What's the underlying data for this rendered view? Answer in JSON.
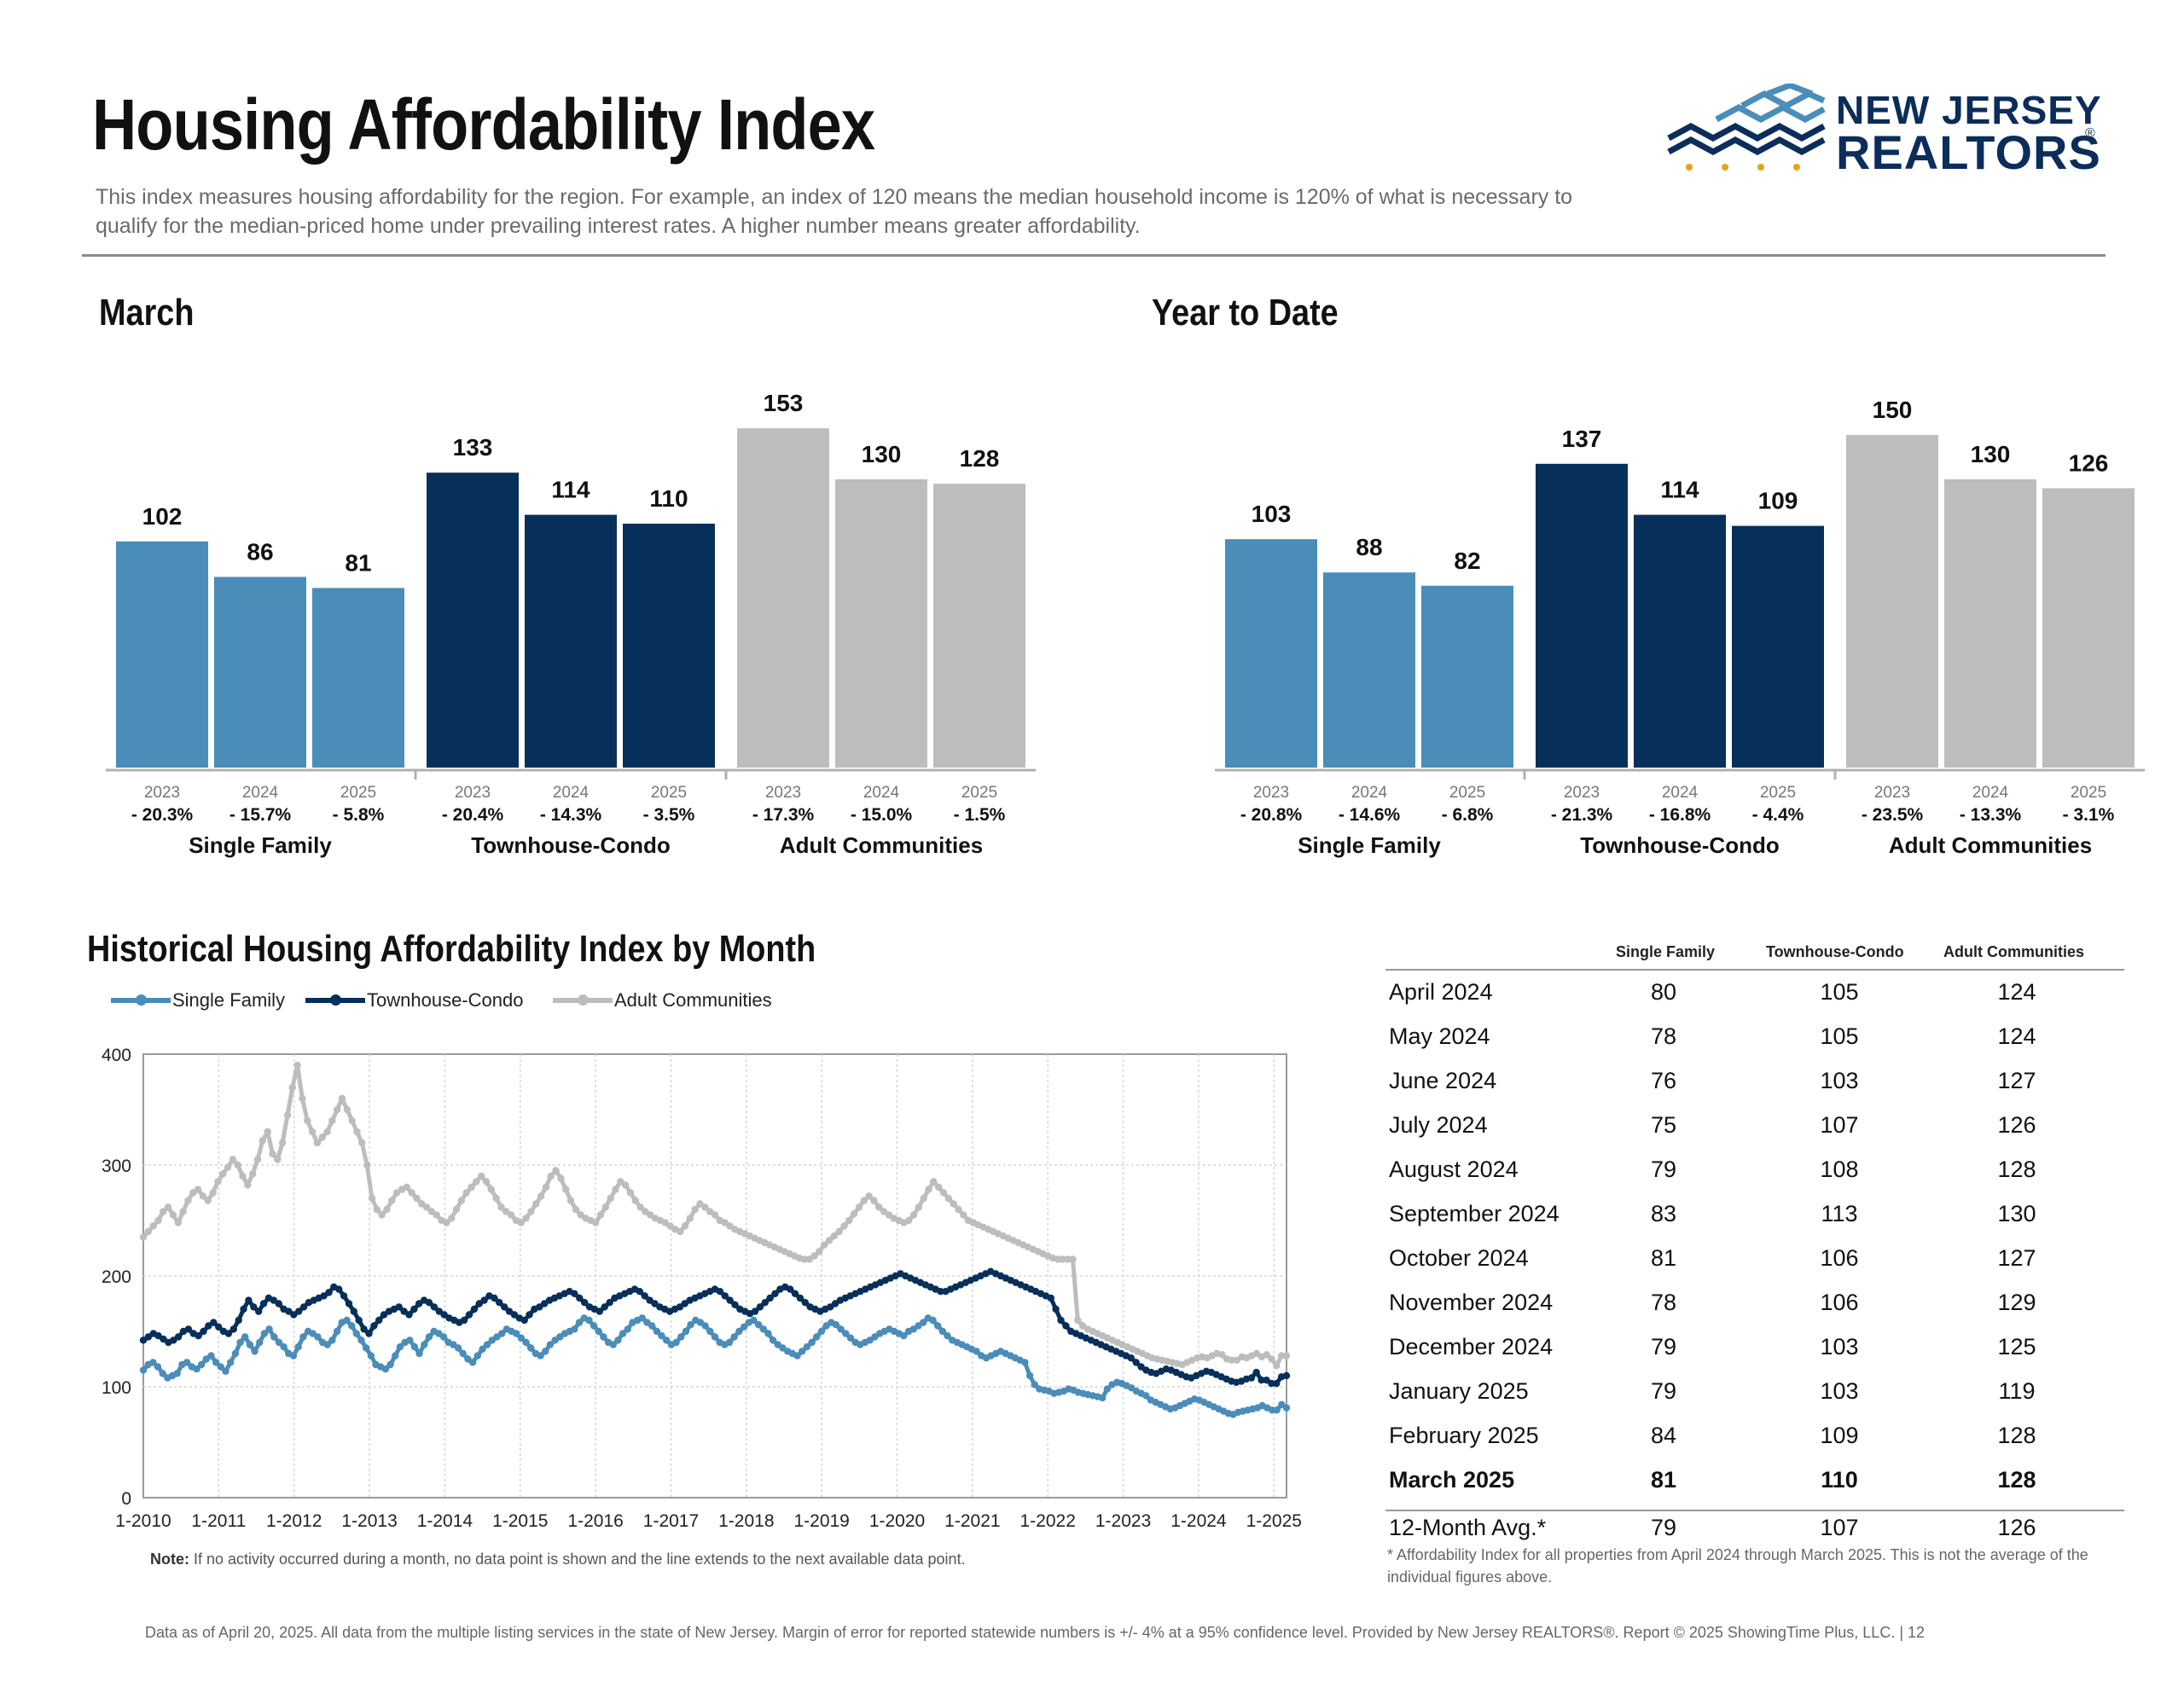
{
  "title": "Housing Affordability Index",
  "description": "This index measures housing affordability for the region. For example, an index of 120 means the median household income is 120% of what is necessary to qualify for the median-priced home under prevailing interest rates. A higher number means greater affordability.",
  "logo": {
    "line1": "NEW JERSEY",
    "line2": "REALTORS",
    "reg": "®"
  },
  "colors": {
    "single_family": "#4a8db9",
    "townhouse": "#062f5a",
    "adult": "#bdbdbd",
    "historical_single": "#4a8db9"
  },
  "sections": {
    "march": "March",
    "ytd": "Year to Date",
    "historical": "Historical Housing Affordability Index by Month"
  },
  "chart_data": [
    {
      "type": "bar",
      "title": "March",
      "groups": [
        "Single Family",
        "Townhouse-Condo",
        "Adult Communities"
      ],
      "categories": [
        "2023",
        "2024",
        "2025"
      ],
      "series": [
        {
          "name": "Single Family",
          "values": [
            102,
            86,
            81
          ],
          "changes": [
            "- 20.3%",
            "- 15.7%",
            "- 5.8%"
          ]
        },
        {
          "name": "Townhouse-Condo",
          "values": [
            133,
            114,
            110
          ],
          "changes": [
            "- 20.4%",
            "- 14.3%",
            "- 3.5%"
          ]
        },
        {
          "name": "Adult Communities",
          "values": [
            153,
            130,
            128
          ],
          "changes": [
            "- 17.3%",
            "- 15.0%",
            "- 1.5%"
          ]
        }
      ]
    },
    {
      "type": "bar",
      "title": "Year to Date",
      "groups": [
        "Single Family",
        "Townhouse-Condo",
        "Adult Communities"
      ],
      "categories": [
        "2023",
        "2024",
        "2025"
      ],
      "series": [
        {
          "name": "Single Family",
          "values": [
            103,
            88,
            82
          ],
          "changes": [
            "- 20.8%",
            "- 14.6%",
            "- 6.8%"
          ]
        },
        {
          "name": "Townhouse-Condo",
          "values": [
            137,
            114,
            109
          ],
          "changes": [
            "- 21.3%",
            "- 16.8%",
            "- 4.4%"
          ]
        },
        {
          "name": "Adult Communities",
          "values": [
            150,
            130,
            126
          ],
          "changes": [
            "- 23.5%",
            "- 13.3%",
            "- 3.1%"
          ]
        }
      ]
    },
    {
      "type": "line",
      "title": "Historical Housing Affordability Index by Month",
      "ylim": [
        0,
        400
      ],
      "yticks": [
        0,
        100,
        200,
        300,
        400
      ],
      "xticks": [
        "1-2010",
        "1-2011",
        "1-2012",
        "1-2013",
        "1-2014",
        "1-2015",
        "1-2016",
        "1-2017",
        "1-2018",
        "1-2019",
        "1-2020",
        "1-2021",
        "1-2022",
        "1-2023",
        "1-2024",
        "1-2025"
      ],
      "x_start": "1-2010",
      "x_end": "3-2025",
      "grid": true,
      "legend": "top-left",
      "series": [
        {
          "name": "Single Family",
          "values": [
            115,
            120,
            122,
            118,
            112,
            108,
            110,
            112,
            120,
            122,
            118,
            116,
            120,
            125,
            128,
            122,
            118,
            114,
            122,
            130,
            140,
            145,
            138,
            132,
            140,
            148,
            152,
            145,
            140,
            136,
            130,
            128,
            136,
            145,
            150,
            148,
            145,
            140,
            138,
            142,
            150,
            158,
            160,
            155,
            148,
            142,
            135,
            128,
            120,
            118,
            116,
            120,
            128,
            136,
            140,
            142,
            136,
            130,
            138,
            145,
            150,
            148,
            145,
            140,
            138,
            135,
            130,
            125,
            122,
            128,
            134,
            138,
            142,
            145,
            148,
            152,
            150,
            148,
            144,
            140,
            135,
            130,
            128,
            132,
            138,
            142,
            145,
            148,
            150,
            152,
            158,
            162,
            160,
            155,
            150,
            145,
            140,
            138,
            142,
            148,
            152,
            158,
            160,
            162,
            158,
            155,
            150,
            146,
            142,
            138,
            140,
            145,
            150,
            156,
            160,
            158,
            155,
            150,
            145,
            140,
            138,
            140,
            145,
            150,
            154,
            158,
            160,
            156,
            152,
            148,
            142,
            138,
            135,
            132,
            130,
            128,
            132,
            136,
            140,
            145,
            150,
            155,
            158,
            156,
            152,
            148,
            144,
            140,
            138,
            140,
            142,
            145,
            148,
            150,
            152,
            150,
            148,
            146,
            150,
            152,
            155,
            158,
            162,
            160,
            155,
            150,
            146,
            142,
            140,
            138,
            136,
            134,
            132,
            128,
            126,
            128,
            130,
            132,
            130,
            128,
            126,
            124,
            122,
            110,
            102,
            98,
            97,
            96,
            94,
            95,
            96,
            98,
            97,
            95,
            94,
            93,
            92,
            91,
            90,
            98,
            102,
            104,
            103,
            101,
            99,
            96,
            94,
            92,
            88,
            86,
            84,
            82,
            80,
            81,
            83,
            85,
            87,
            89,
            88,
            86,
            84,
            82,
            80,
            78,
            76,
            75,
            77,
            78,
            79,
            80,
            81,
            83,
            81,
            79,
            79,
            84,
            81
          ]
        },
        {
          "name": "Townhouse-Condo",
          "values": [
            142,
            145,
            148,
            146,
            143,
            140,
            142,
            145,
            150,
            152,
            148,
            146,
            150,
            155,
            158,
            154,
            150,
            148,
            152,
            160,
            170,
            178,
            172,
            168,
            175,
            180,
            178,
            175,
            170,
            168,
            165,
            168,
            172,
            176,
            178,
            180,
            182,
            185,
            190,
            188,
            182,
            175,
            168,
            160,
            152,
            148,
            155,
            160,
            165,
            168,
            170,
            172,
            168,
            165,
            170,
            175,
            178,
            176,
            172,
            168,
            165,
            162,
            160,
            158,
            160,
            165,
            170,
            175,
            178,
            182,
            180,
            176,
            172,
            168,
            165,
            162,
            160,
            165,
            170,
            172,
            175,
            178,
            180,
            182,
            184,
            186,
            184,
            180,
            176,
            172,
            170,
            168,
            172,
            176,
            180,
            182,
            184,
            186,
            188,
            186,
            182,
            178,
            175,
            172,
            170,
            168,
            170,
            172,
            175,
            178,
            180,
            182,
            184,
            186,
            188,
            186,
            182,
            178,
            174,
            170,
            168,
            166,
            168,
            172,
            176,
            180,
            184,
            188,
            190,
            188,
            184,
            180,
            176,
            172,
            170,
            168,
            170,
            172,
            175,
            178,
            180,
            182,
            184,
            186,
            188,
            190,
            192,
            194,
            196,
            198,
            200,
            202,
            200,
            198,
            196,
            194,
            192,
            190,
            188,
            186,
            186,
            188,
            190,
            192,
            194,
            196,
            198,
            200,
            202,
            204,
            202,
            200,
            198,
            196,
            194,
            192,
            190,
            188,
            186,
            184,
            182,
            180,
            170,
            160,
            155,
            150,
            148,
            146,
            144,
            142,
            140,
            138,
            136,
            134,
            132,
            130,
            128,
            126,
            122,
            118,
            115,
            113,
            112,
            114,
            116,
            115,
            113,
            111,
            109,
            108,
            110,
            112,
            114,
            113,
            111,
            109,
            107,
            105,
            104,
            105,
            107,
            108,
            113,
            106,
            106,
            103,
            103,
            109,
            110
          ]
        },
        {
          "name": "Adult Communities",
          "values": [
            235,
            240,
            245,
            250,
            258,
            262,
            255,
            248,
            258,
            268,
            275,
            278,
            272,
            268,
            275,
            285,
            292,
            298,
            305,
            300,
            290,
            282,
            292,
            305,
            322,
            330,
            310,
            305,
            320,
            345,
            370,
            390,
            360,
            340,
            330,
            320,
            325,
            330,
            340,
            350,
            360,
            350,
            340,
            330,
            320,
            300,
            270,
            260,
            255,
            260,
            268,
            275,
            278,
            280,
            275,
            270,
            265,
            262,
            258,
            255,
            250,
            248,
            252,
            260,
            268,
            275,
            280,
            285,
            290,
            285,
            278,
            270,
            262,
            258,
            255,
            250,
            248,
            252,
            258,
            265,
            272,
            280,
            290,
            295,
            288,
            278,
            268,
            260,
            255,
            252,
            250,
            248,
            255,
            262,
            270,
            278,
            285,
            282,
            275,
            268,
            262,
            258,
            255,
            252,
            250,
            248,
            245,
            242,
            240,
            245,
            252,
            260,
            265,
            262,
            258,
            255,
            250,
            248,
            245,
            242,
            240,
            238,
            236,
            234,
            232,
            230,
            228,
            226,
            224,
            222,
            220,
            218,
            216,
            215,
            215,
            218,
            222,
            228,
            232,
            236,
            240,
            245,
            250,
            256,
            262,
            268,
            272,
            268,
            262,
            258,
            255,
            252,
            250,
            248,
            250,
            255,
            262,
            270,
            278,
            285,
            280,
            275,
            270,
            265,
            260,
            255,
            250,
            248,
            246,
            244,
            242,
            240,
            238,
            236,
            234,
            232,
            230,
            228,
            226,
            224,
            222,
            220,
            218,
            216,
            215,
            215,
            215,
            215,
            160,
            155,
            152,
            150,
            148,
            146,
            144,
            142,
            140,
            138,
            136,
            134,
            132,
            130,
            128,
            126,
            125,
            124,
            123,
            122,
            121,
            120,
            122,
            124,
            126,
            127,
            126,
            128,
            130,
            129,
            125,
            124,
            124,
            127,
            126,
            128,
            130,
            127,
            129,
            125,
            119,
            128,
            128
          ]
        }
      ]
    }
  ],
  "table": {
    "headers": [
      "Single Family",
      "Townhouse-Condo",
      "Adult Communities"
    ],
    "rows": [
      {
        "label": "April 2024",
        "sf": "80",
        "tc": "105",
        "ac": "124"
      },
      {
        "label": "May 2024",
        "sf": "78",
        "tc": "105",
        "ac": "124"
      },
      {
        "label": "June 2024",
        "sf": "76",
        "tc": "103",
        "ac": "127"
      },
      {
        "label": "July 2024",
        "sf": "75",
        "tc": "107",
        "ac": "126"
      },
      {
        "label": "August 2024",
        "sf": "79",
        "tc": "108",
        "ac": "128"
      },
      {
        "label": "September 2024",
        "sf": "83",
        "tc": "113",
        "ac": "130"
      },
      {
        "label": "October 2024",
        "sf": "81",
        "tc": "106",
        "ac": "127"
      },
      {
        "label": "November 2024",
        "sf": "78",
        "tc": "106",
        "ac": "129"
      },
      {
        "label": "December 2024",
        "sf": "79",
        "tc": "103",
        "ac": "125"
      },
      {
        "label": "January 2025",
        "sf": "79",
        "tc": "103",
        "ac": "119"
      },
      {
        "label": "February 2025",
        "sf": "84",
        "tc": "109",
        "ac": "128"
      },
      {
        "label": "March 2025",
        "sf": "81",
        "tc": "110",
        "ac": "128"
      }
    ],
    "avg": {
      "label": "12-Month Avg.*",
      "sf": "79",
      "tc": "107",
      "ac": "126"
    },
    "footnote": "* Affordability Index for all properties from April 2024 through March 2025. This is not the average of the individual figures above."
  },
  "note": {
    "label": "Note:",
    "text": " If no activity occurred during a month, no data point is shown and the line extends to the next available data point."
  },
  "footer": "Data as of April 20, 2025. All data from the multiple listing services in the state of New Jersey. Margin of error for reported statewide numbers is +/- 4% at a 95% confidence level. Provided by New Jersey REALTORS®. Report © 2025 ShowingTime Plus, LLC. |  12"
}
